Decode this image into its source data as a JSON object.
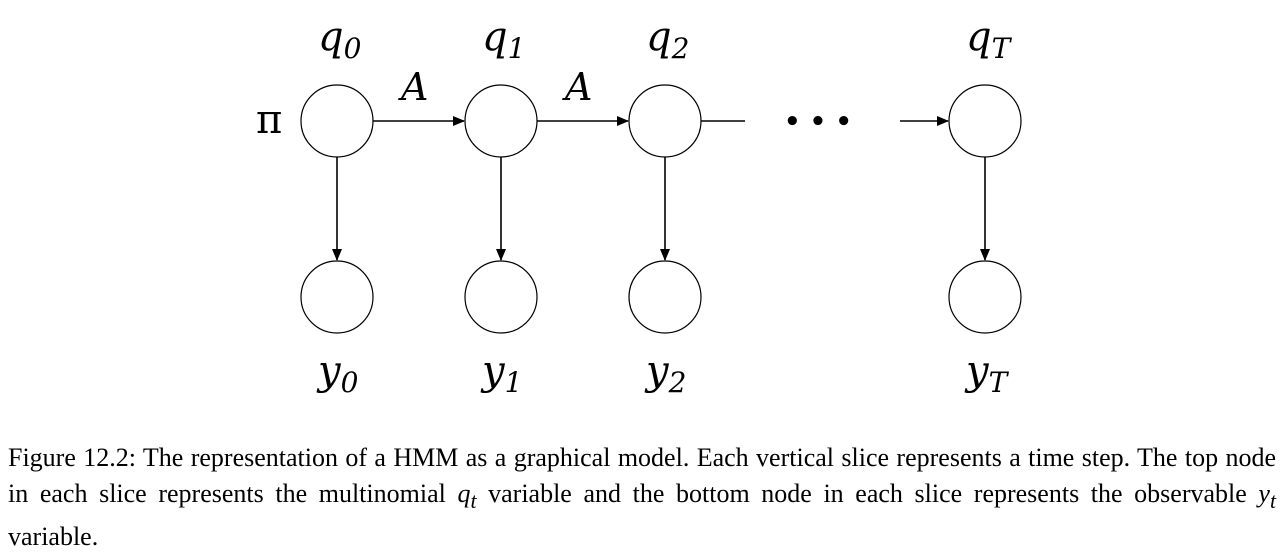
{
  "diagram": {
    "prior_label": "π",
    "transition_label": "A",
    "ellipsis": "• • •",
    "slices": [
      {
        "hidden_var": "q",
        "hidden_sub": "0",
        "obs_var": "y",
        "obs_sub": "0"
      },
      {
        "hidden_var": "q",
        "hidden_sub": "1",
        "obs_var": "y",
        "obs_sub": "1"
      },
      {
        "hidden_var": "q",
        "hidden_sub": "2",
        "obs_var": "y",
        "obs_sub": "2"
      },
      {
        "hidden_var": "q",
        "hidden_sub": "T",
        "obs_var": "y",
        "obs_sub": "T"
      }
    ]
  },
  "caption": {
    "part1": "Figure 12.2: The representation of a HMM as a graphical model. Each vertical slice represents a time step. The top node in each slice represents the multinomial ",
    "var1": "q",
    "sub1": "t",
    "part2": " variable and the bottom node in each slice represents the observable ",
    "var2": "y",
    "sub2": "t",
    "part3": " variable."
  }
}
